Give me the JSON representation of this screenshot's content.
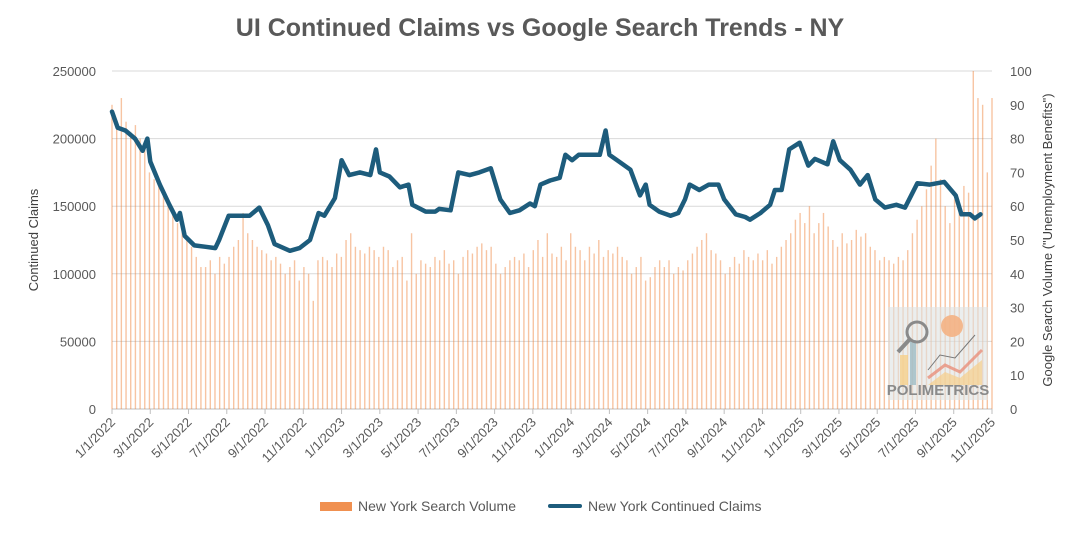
{
  "chart_data": {
    "type": "bar+line",
    "title": "UI Continued Claims vs Google Search Trends - NY",
    "ylabel": "Continued Claims",
    "y2label": "Google Search Volume (\"Unemployment Benefits\")",
    "ylim": [
      0,
      250000
    ],
    "y2lim": [
      0,
      100
    ],
    "yticks": [
      "0",
      "50000",
      "100000",
      "150000",
      "200000",
      "250000"
    ],
    "y2ticks": [
      "0",
      "10",
      "20",
      "30",
      "40",
      "50",
      "60",
      "70",
      "80",
      "90",
      "100"
    ],
    "xticks": [
      "1/1/2022",
      "3/1/2022",
      "5/1/2022",
      "7/1/2022",
      "9/1/2022",
      "11/1/2022",
      "1/1/2023",
      "3/1/2023",
      "5/1/2023",
      "7/1/2023",
      "9/1/2023",
      "11/1/2023",
      "1/1/2024",
      "3/1/2024",
      "5/1/2024",
      "7/1/2024",
      "9/1/2024",
      "11/1/2024",
      "1/1/2025",
      "3/1/2025",
      "5/1/2025",
      "7/1/2025",
      "9/1/2025",
      "11/1/2025"
    ],
    "x_unit": "months since 1/1/2022",
    "x_range": [
      0,
      46
    ],
    "grid": true,
    "legend_position": "bottom",
    "series": [
      {
        "name": "New York Search Volume",
        "type": "bar",
        "axis": "right",
        "color": "#ed7d31",
        "note": "weekly values starting 1/1/2022",
        "values": [
          90,
          85,
          92,
          85,
          82,
          84,
          80,
          78,
          70,
          68,
          66,
          64,
          60,
          58,
          55,
          56,
          50,
          48,
          45,
          42,
          42,
          44,
          40,
          45,
          43,
          45,
          48,
          50,
          58,
          52,
          50,
          48,
          47,
          46,
          44,
          45,
          43,
          40,
          42,
          44,
          38,
          42,
          40,
          32,
          44,
          45,
          44,
          42,
          46,
          45,
          50,
          52,
          48,
          47,
          46,
          48,
          47,
          45,
          48,
          47,
          42,
          44,
          45,
          38,
          52,
          40,
          44,
          43,
          42,
          45,
          44,
          47,
          43,
          44,
          40,
          45,
          47,
          46,
          48,
          49,
          47,
          48,
          43,
          40,
          42,
          44,
          45,
          44,
          46,
          42,
          47,
          50,
          45,
          52,
          46,
          45,
          48,
          44,
          52,
          48,
          47,
          44,
          48,
          46,
          50,
          45,
          47,
          46,
          48,
          45,
          44,
          40,
          42,
          45,
          38,
          39,
          42,
          44,
          42,
          44,
          40,
          42,
          41,
          44,
          46,
          48,
          50,
          52,
          47,
          46,
          44,
          40,
          42,
          45,
          43,
          47,
          45,
          44,
          46,
          44,
          47,
          43,
          45,
          48,
          50,
          52,
          56,
          58,
          55,
          60,
          52,
          55,
          58,
          54,
          50,
          48,
          52,
          49,
          50,
          53,
          51,
          52,
          48,
          47,
          44,
          45,
          44,
          43,
          45,
          44,
          47,
          52,
          56,
          60,
          65,
          72,
          80,
          68,
          60,
          55,
          62,
          58,
          66,
          64,
          100,
          92,
          90,
          70,
          92
        ]
      },
      {
        "name": "New York Continued Claims",
        "type": "line",
        "axis": "left",
        "color": "#1d5c7c",
        "points": [
          [
            0,
            220000
          ],
          [
            0.3,
            208000
          ],
          [
            0.7,
            206000
          ],
          [
            1.2,
            200000
          ],
          [
            1.6,
            191000
          ],
          [
            1.85,
            200000
          ],
          [
            2,
            183000
          ],
          [
            2.5,
            166000
          ],
          [
            3.0,
            151000
          ],
          [
            3.4,
            140000
          ],
          [
            3.55,
            145000
          ],
          [
            3.8,
            128000
          ],
          [
            4.3,
            121000
          ],
          [
            4.9,
            120000
          ],
          [
            5.4,
            119000
          ],
          [
            5.6,
            125000
          ],
          [
            6.1,
            143000
          ],
          [
            6.7,
            143000
          ],
          [
            7.2,
            143000
          ],
          [
            7.7,
            149000
          ],
          [
            8.15,
            136000
          ],
          [
            8.5,
            122000
          ],
          [
            9.3,
            117000
          ],
          [
            9.8,
            119000
          ],
          [
            10.35,
            125000
          ],
          [
            10.8,
            145000
          ],
          [
            11.1,
            143000
          ],
          [
            11.65,
            156000
          ],
          [
            12.0,
            184000
          ],
          [
            12.4,
            173000
          ],
          [
            12.96,
            175000
          ],
          [
            13.5,
            173000
          ],
          [
            13.8,
            192000
          ],
          [
            14.0,
            175000
          ],
          [
            14.5,
            172000
          ],
          [
            15.05,
            164000
          ],
          [
            15.5,
            166000
          ],
          [
            15.7,
            151000
          ],
          [
            16.4,
            146000
          ],
          [
            16.9,
            146000
          ],
          [
            17.1,
            148000
          ],
          [
            17.7,
            147000
          ],
          [
            18.1,
            175000
          ],
          [
            18.7,
            173000
          ],
          [
            19.2,
            175000
          ],
          [
            19.8,
            178000
          ],
          [
            20.3,
            155000
          ],
          [
            20.8,
            145000
          ],
          [
            21.3,
            147000
          ],
          [
            21.85,
            152000
          ],
          [
            22.1,
            150000
          ],
          [
            22.4,
            166000
          ],
          [
            22.9,
            169000
          ],
          [
            23.4,
            171000
          ],
          [
            23.7,
            188000
          ],
          [
            24.05,
            184000
          ],
          [
            24.4,
            188000
          ],
          [
            25.0,
            188000
          ],
          [
            25.5,
            188000
          ],
          [
            25.8,
            206000
          ],
          [
            26.0,
            188000
          ],
          [
            26.5,
            183000
          ],
          [
            27.1,
            177000
          ],
          [
            27.6,
            158000
          ],
          [
            27.9,
            166000
          ],
          [
            28.1,
            151000
          ],
          [
            28.6,
            146000
          ],
          [
            29.2,
            143000
          ],
          [
            29.6,
            145000
          ],
          [
            29.95,
            155000
          ],
          [
            30.2,
            166000
          ],
          [
            30.7,
            162000
          ],
          [
            31.2,
            166000
          ],
          [
            31.7,
            166000
          ],
          [
            32.0,
            155000
          ],
          [
            32.6,
            144000
          ],
          [
            33.1,
            142000
          ],
          [
            33.35,
            140000
          ],
          [
            33.9,
            145000
          ],
          [
            34.4,
            151000
          ],
          [
            34.65,
            162000
          ],
          [
            35.0,
            162000
          ],
          [
            35.4,
            192000
          ],
          [
            35.95,
            197000
          ],
          [
            36.4,
            180000
          ],
          [
            36.75,
            185000
          ],
          [
            37.4,
            181000
          ],
          [
            37.7,
            198000
          ],
          [
            38.05,
            184000
          ],
          [
            38.6,
            177000
          ],
          [
            39.1,
            166000
          ],
          [
            39.5,
            173000
          ],
          [
            39.9,
            155000
          ],
          [
            40.4,
            149000
          ],
          [
            41.0,
            151000
          ],
          [
            41.45,
            149000
          ],
          [
            42.1,
            167000
          ],
          [
            42.75,
            166000
          ],
          [
            43.5,
            168000
          ],
          [
            44.1,
            158000
          ],
          [
            44.4,
            144000
          ],
          [
            44.85,
            144000
          ],
          [
            45.1,
            141000
          ],
          [
            45.4,
            144000
          ]
        ]
      }
    ]
  },
  "watermark": {
    "text": "POLIMETRICS"
  }
}
